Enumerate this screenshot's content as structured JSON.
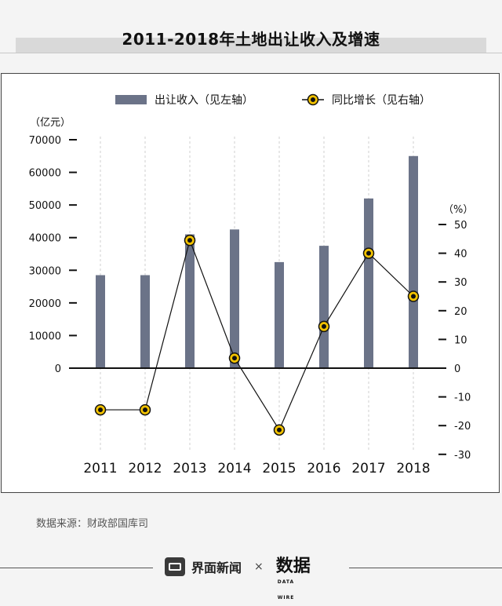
{
  "title": "2011-2018年土地出让收入及增速",
  "source": "数据来源：财政部国库司",
  "footer": {
    "brand": "界面新闻",
    "separator": "×",
    "logo": "数据",
    "logo_sub": "DATA WIRE"
  },
  "colors": {
    "bar": "#6b7388",
    "line": "#111111",
    "marker_ring": "#f2c200",
    "marker_core": "#111111",
    "axis": "#111111",
    "grid": "#cfcfcf"
  },
  "chart_data": {
    "type": "bar+line",
    "categories": [
      "2011",
      "2012",
      "2013",
      "2014",
      "2015",
      "2016",
      "2017",
      "2018"
    ],
    "series": [
      {
        "name": "出让收入（见左轴）",
        "kind": "bar",
        "axis": "left",
        "values": [
          28500,
          28500,
          41000,
          42500,
          32500,
          37500,
          52000,
          65000
        ]
      },
      {
        "name": "同比增长（见右轴）",
        "kind": "line",
        "axis": "right",
        "values": [
          -14.5,
          -14.5,
          44.5,
          3.5,
          -21.5,
          14.5,
          40,
          25
        ]
      }
    ],
    "left_axis": {
      "unit": "（亿元）",
      "ylim": [
        0,
        70000
      ],
      "ticks": [
        "0",
        "10000",
        "20000",
        "30000",
        "40000",
        "50000",
        "60000",
        "70000"
      ]
    },
    "right_axis": {
      "unit": "（%）",
      "ylim": [
        -30,
        50
      ],
      "ticks": [
        "50",
        "40",
        "30",
        "20",
        "10",
        "0",
        "-10",
        "-20",
        "-30"
      ]
    },
    "legend": "top-center",
    "grid": "vertical-dashed"
  }
}
